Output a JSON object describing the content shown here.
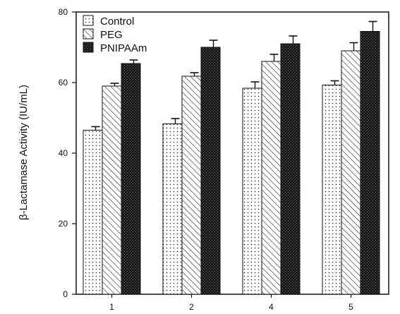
{
  "chart_data": {
    "type": "bar",
    "categories": [
      "1",
      "2",
      "4",
      "5"
    ],
    "series": [
      {
        "name": "Control",
        "values": [
          46.5,
          48.3,
          58.4,
          59.3
        ],
        "errors": [
          1.0,
          1.5,
          1.8,
          1.2
        ],
        "pattern": "dots"
      },
      {
        "name": "PEG",
        "values": [
          59.0,
          61.8,
          66.0,
          69.0
        ],
        "errors": [
          0.8,
          1.0,
          2.0,
          2.3
        ],
        "pattern": "hatch"
      },
      {
        "name": "PNIPAAm",
        "values": [
          65.4,
          70.0,
          71.0,
          74.5
        ],
        "errors": [
          1.0,
          2.0,
          2.2,
          2.8
        ],
        "pattern": "dark"
      }
    ],
    "title": "",
    "xlabel": "",
    "ylabel": "β-Lactamase Activity (IU/mL)",
    "ylim": [
      0,
      80
    ],
    "yticks": [
      "0",
      "20",
      "40",
      "60",
      "80"
    ],
    "grid": false,
    "legend_position": "top-left"
  }
}
